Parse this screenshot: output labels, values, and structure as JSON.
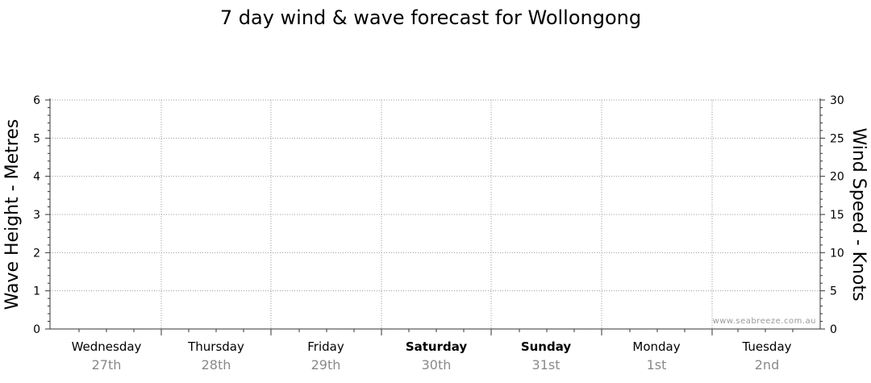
{
  "chart_data": {
    "type": "line",
    "title": "7 day wind & wave forecast for Wollongong",
    "y_left": {
      "label": "Wave Height - Metres",
      "ylim": [
        0,
        6
      ],
      "ticks": [
        "0",
        "1",
        "2",
        "3",
        "4",
        "5",
        "6"
      ]
    },
    "y_right": {
      "label": "Wind Speed - Knots",
      "ylim": [
        0,
        30
      ],
      "ticks": [
        "0",
        "5",
        "10",
        "15",
        "20",
        "25",
        "30"
      ]
    },
    "x": {
      "days": [
        {
          "day": "Wednesday",
          "date": "27th",
          "bold": false
        },
        {
          "day": "Thursday",
          "date": "28th",
          "bold": false
        },
        {
          "day": "Friday",
          "date": "29th",
          "bold": false
        },
        {
          "day": "Saturday",
          "date": "30th",
          "bold": true
        },
        {
          "day": "Sunday",
          "date": "31st",
          "bold": true
        },
        {
          "day": "Monday",
          "date": "1st",
          "bold": false
        },
        {
          "day": "Tuesday",
          "date": "2nd",
          "bold": false
        }
      ]
    },
    "series": [],
    "grid": true,
    "watermark": "www.seabreeze.com.au"
  }
}
